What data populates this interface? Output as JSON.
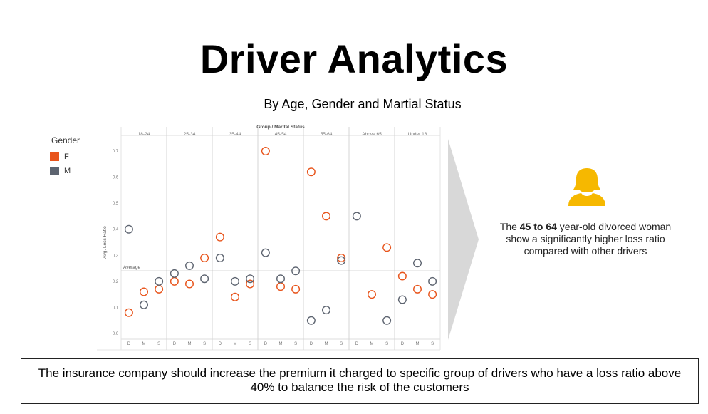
{
  "title": "Driver Analytics",
  "subtitle": "By Age, Gender and Martial Status",
  "legend": {
    "title": "Gender",
    "items": [
      {
        "label": "F",
        "color": "#e8541b"
      },
      {
        "label": "M",
        "color": "#5d6470"
      }
    ]
  },
  "insight": {
    "prefix": "The ",
    "highlight": "45 to 64",
    "suffix": " year-old divorced woman show a significantly higher loss ratio compared with other drivers"
  },
  "conclusion": "The insurance company should increase the premium it charged to specific group of drivers who have a loss ratio above 40% to balance the risk of the customers",
  "icon": "female-person-icon",
  "chart_data": {
    "type": "scatter",
    "title": "Group / Marital Status",
    "ylabel": "Avg. Loss Ratio",
    "ylim": [
      0,
      0.74
    ],
    "yticks": [
      0.0,
      0.1,
      0.2,
      0.3,
      0.4,
      0.5,
      0.6,
      0.7
    ],
    "reference_line": {
      "label": "Average",
      "value": 0.24
    },
    "groups": [
      "18-24",
      "25-34",
      "35-44",
      "45-54",
      "55-64",
      "Above 65",
      "Under 18"
    ],
    "statuses": [
      "D",
      "M",
      "S"
    ],
    "series": [
      {
        "name": "F",
        "color": "#e8541b",
        "points": [
          {
            "group": "18-24",
            "status": "D",
            "value": 0.08
          },
          {
            "group": "18-24",
            "status": "M",
            "value": 0.16
          },
          {
            "group": "18-24",
            "status": "S",
            "value": 0.17
          },
          {
            "group": "25-34",
            "status": "D",
            "value": 0.2
          },
          {
            "group": "25-34",
            "status": "M",
            "value": 0.19
          },
          {
            "group": "25-34",
            "status": "S",
            "value": 0.29
          },
          {
            "group": "35-44",
            "status": "D",
            "value": 0.37
          },
          {
            "group": "35-44",
            "status": "M",
            "value": 0.14
          },
          {
            "group": "35-44",
            "status": "S",
            "value": 0.19
          },
          {
            "group": "45-54",
            "status": "D",
            "value": 0.7
          },
          {
            "group": "45-54",
            "status": "M",
            "value": 0.18
          },
          {
            "group": "45-54",
            "status": "S",
            "value": 0.17
          },
          {
            "group": "55-64",
            "status": "D",
            "value": 0.62
          },
          {
            "group": "55-64",
            "status": "M",
            "value": 0.45
          },
          {
            "group": "55-64",
            "status": "S",
            "value": 0.29
          },
          {
            "group": "Above 65",
            "status": "M",
            "value": 0.15
          },
          {
            "group": "Above 65",
            "status": "S",
            "value": 0.33
          },
          {
            "group": "Under 18",
            "status": "D",
            "value": 0.22
          },
          {
            "group": "Under 18",
            "status": "M",
            "value": 0.17
          },
          {
            "group": "Under 18",
            "status": "S",
            "value": 0.15
          }
        ]
      },
      {
        "name": "M",
        "color": "#5d6470",
        "points": [
          {
            "group": "18-24",
            "status": "D",
            "value": 0.4
          },
          {
            "group": "18-24",
            "status": "M",
            "value": 0.11
          },
          {
            "group": "18-24",
            "status": "S",
            "value": 0.2
          },
          {
            "group": "25-34",
            "status": "D",
            "value": 0.23
          },
          {
            "group": "25-34",
            "status": "M",
            "value": 0.26
          },
          {
            "group": "25-34",
            "status": "S",
            "value": 0.21
          },
          {
            "group": "35-44",
            "status": "D",
            "value": 0.29
          },
          {
            "group": "35-44",
            "status": "M",
            "value": 0.2
          },
          {
            "group": "35-44",
            "status": "S",
            "value": 0.21
          },
          {
            "group": "45-54",
            "status": "D",
            "value": 0.31
          },
          {
            "group": "45-54",
            "status": "M",
            "value": 0.21
          },
          {
            "group": "45-54",
            "status": "S",
            "value": 0.24
          },
          {
            "group": "55-64",
            "status": "D",
            "value": 0.05
          },
          {
            "group": "55-64",
            "status": "M",
            "value": 0.09
          },
          {
            "group": "55-64",
            "status": "S",
            "value": 0.28
          },
          {
            "group": "Above 65",
            "status": "D",
            "value": 0.45
          },
          {
            "group": "Above 65",
            "status": "S",
            "value": 0.05
          },
          {
            "group": "Under 18",
            "status": "D",
            "value": 0.13
          },
          {
            "group": "Under 18",
            "status": "M",
            "value": 0.27
          },
          {
            "group": "Under 18",
            "status": "S",
            "value": 0.2
          }
        ]
      }
    ]
  }
}
